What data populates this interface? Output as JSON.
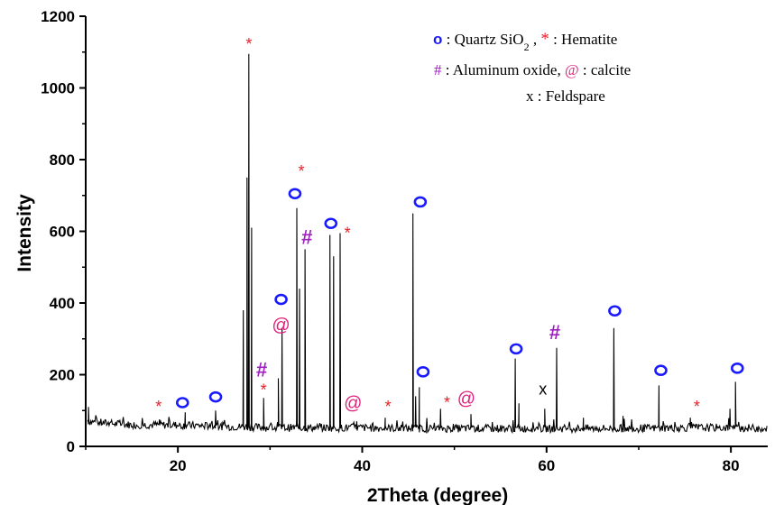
{
  "chart_data": {
    "type": "line",
    "xlabel": "2Theta (degree)",
    "ylabel": "Intensity",
    "xlim": [
      10,
      84
    ],
    "ylim": [
      0,
      1200
    ],
    "xticks": [
      20,
      40,
      60,
      80
    ],
    "yticks": [
      0,
      200,
      400,
      600,
      800,
      1000,
      1200
    ],
    "baseline": [
      [
        10.2,
        70
      ],
      [
        12,
        65
      ],
      [
        15,
        60
      ],
      [
        18,
        60
      ],
      [
        22,
        58
      ],
      [
        26,
        55
      ],
      [
        30,
        52
      ],
      [
        35,
        52
      ],
      [
        40,
        52
      ],
      [
        45,
        50
      ],
      [
        50,
        50
      ],
      [
        55,
        50
      ],
      [
        60,
        50
      ],
      [
        65,
        50
      ],
      [
        70,
        50
      ],
      [
        75,
        52
      ],
      [
        80,
        52
      ],
      [
        84,
        50
      ]
    ],
    "peaks": [
      {
        "x": 10.3,
        "y": 110
      },
      {
        "x": 18.0,
        "y": 75
      },
      {
        "x": 20.8,
        "y": 95
      },
      {
        "x": 24.1,
        "y": 100
      },
      {
        "x": 27.1,
        "y": 380
      },
      {
        "x": 27.5,
        "y": 750
      },
      {
        "x": 27.7,
        "y": 1095
      },
      {
        "x": 28.0,
        "y": 610
      },
      {
        "x": 29.3,
        "y": 135
      },
      {
        "x": 30.9,
        "y": 190
      },
      {
        "x": 31.3,
        "y": 330
      },
      {
        "x": 32.9,
        "y": 665
      },
      {
        "x": 33.2,
        "y": 440
      },
      {
        "x": 33.8,
        "y": 550
      },
      {
        "x": 36.5,
        "y": 590
      },
      {
        "x": 36.9,
        "y": 530
      },
      {
        "x": 37.6,
        "y": 595
      },
      {
        "x": 39.4,
        "y": 70
      },
      {
        "x": 42.5,
        "y": 80
      },
      {
        "x": 45.5,
        "y": 650
      },
      {
        "x": 45.8,
        "y": 140
      },
      {
        "x": 46.2,
        "y": 165
      },
      {
        "x": 48.5,
        "y": 105
      },
      {
        "x": 51.8,
        "y": 90
      },
      {
        "x": 56.6,
        "y": 245
      },
      {
        "x": 57.0,
        "y": 120
      },
      {
        "x": 59.8,
        "y": 105
      },
      {
        "x": 61.1,
        "y": 275
      },
      {
        "x": 64.0,
        "y": 80
      },
      {
        "x": 67.3,
        "y": 330
      },
      {
        "x": 68.3,
        "y": 85
      },
      {
        "x": 72.2,
        "y": 170
      },
      {
        "x": 75.6,
        "y": 80
      },
      {
        "x": 79.9,
        "y": 105
      },
      {
        "x": 80.5,
        "y": 180
      }
    ],
    "markers": [
      {
        "symbol": "*",
        "x": 27.7,
        "y": 1130,
        "color": "#e8202a"
      },
      {
        "symbol": "o",
        "x": 20.5,
        "y": 122,
        "color": "#1a1aff"
      },
      {
        "symbol": "o",
        "x": 24.1,
        "y": 138,
        "color": "#1a1aff"
      },
      {
        "symbol": "*",
        "x": 17.9,
        "y": 118,
        "color": "#e8202a"
      },
      {
        "symbol": "#",
        "x": 29.1,
        "y": 215,
        "color": "#a020c0"
      },
      {
        "symbol": "*",
        "x": 29.3,
        "y": 165,
        "color": "#e8202a"
      },
      {
        "symbol": "o",
        "x": 31.2,
        "y": 410,
        "color": "#1a1aff"
      },
      {
        "symbol": "@",
        "x": 31.2,
        "y": 340,
        "color": "#e0207a"
      },
      {
        "symbol": "o",
        "x": 32.7,
        "y": 705,
        "color": "#1a1aff"
      },
      {
        "symbol": "*",
        "x": 33.4,
        "y": 775,
        "color": "#e8202a"
      },
      {
        "symbol": "#",
        "x": 34.0,
        "y": 585,
        "color": "#a020c0"
      },
      {
        "symbol": "o",
        "x": 36.6,
        "y": 622,
        "color": "#1a1aff"
      },
      {
        "symbol": "*",
        "x": 38.4,
        "y": 602,
        "color": "#e8202a"
      },
      {
        "symbol": "@",
        "x": 39.0,
        "y": 122,
        "color": "#e0207a"
      },
      {
        "symbol": "*",
        "x": 42.8,
        "y": 118,
        "color": "#e8202a"
      },
      {
        "symbol": "o",
        "x": 46.3,
        "y": 682,
        "color": "#1a1aff"
      },
      {
        "symbol": "o",
        "x": 46.6,
        "y": 208,
        "color": "#1a1aff"
      },
      {
        "symbol": "*",
        "x": 49.2,
        "y": 130,
        "color": "#e8202a"
      },
      {
        "symbol": "@",
        "x": 51.3,
        "y": 135,
        "color": "#e0207a"
      },
      {
        "symbol": "o",
        "x": 56.7,
        "y": 272,
        "color": "#1a1aff"
      },
      {
        "symbol": "x",
        "x": 59.6,
        "y": 160,
        "color": "#000000"
      },
      {
        "symbol": "#",
        "x": 60.9,
        "y": 320,
        "color": "#a020c0"
      },
      {
        "symbol": "o",
        "x": 67.4,
        "y": 378,
        "color": "#1a1aff"
      },
      {
        "symbol": "o",
        "x": 72.4,
        "y": 212,
        "color": "#1a1aff"
      },
      {
        "symbol": "*",
        "x": 76.3,
        "y": 118,
        "color": "#e8202a"
      },
      {
        "symbol": "o",
        "x": 80.7,
        "y": 218,
        "color": "#1a1aff"
      }
    ],
    "legend": {
      "placement": "top-right",
      "lines": [
        [
          {
            "text": "o",
            "color": "#1a1aff"
          },
          {
            "text": " : Quartz SiO"
          },
          {
            "text": "2",
            "sub": true
          },
          {
            "text": " , "
          },
          {
            "text": "*",
            "color": "#e8202a"
          },
          {
            "text": " : Hematite"
          }
        ],
        [
          {
            "text": "#",
            "color": "#a020c0"
          },
          {
            "text": " : Aluminum oxide, "
          },
          {
            "text": "@",
            "color": "#e0207a"
          },
          {
            "text": " : calcite"
          }
        ],
        [
          {
            "text": "x : Feldspare"
          }
        ]
      ]
    },
    "grid": false
  }
}
